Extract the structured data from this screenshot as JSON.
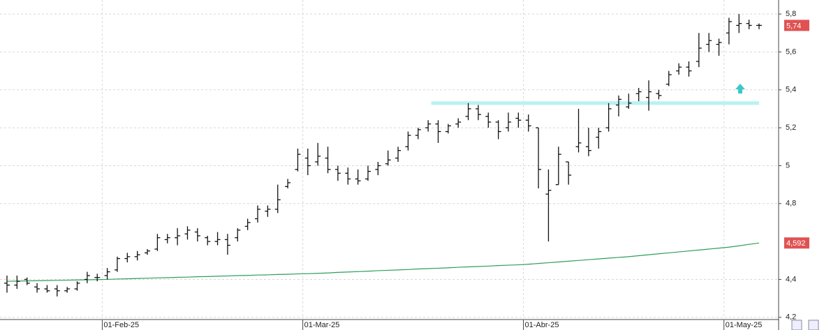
{
  "chart_data": {
    "type": "ohlc",
    "categories": [
      null,
      null,
      null,
      null,
      null,
      null,
      null,
      null,
      null,
      null,
      "01-Feb-25",
      null,
      null,
      null,
      null,
      null,
      null,
      null,
      null,
      null,
      null,
      null,
      null,
      null,
      null,
      null,
      null,
      null,
      null,
      null,
      "01-Mar-25",
      null,
      null,
      null,
      null,
      null,
      null,
      null,
      null,
      null,
      null,
      null,
      null,
      null,
      null,
      null,
      null,
      null,
      null,
      null,
      null,
      null,
      "01-Abr-25",
      null,
      null,
      null,
      null,
      null,
      null,
      null,
      null,
      null,
      null,
      null,
      null,
      null,
      null,
      null,
      null,
      null,
      null,
      null,
      "01-May-25",
      null,
      null,
      null
    ],
    "bars": [
      [
        4.38,
        4.42,
        4.33,
        4.37
      ],
      [
        4.37,
        4.42,
        4.35,
        4.39
      ],
      [
        4.4,
        4.41,
        4.37,
        4.38
      ],
      [
        4.36,
        4.38,
        4.33,
        4.35
      ],
      [
        4.35,
        4.37,
        4.33,
        4.34
      ],
      [
        4.35,
        4.37,
        4.31,
        4.34
      ],
      [
        4.34,
        4.36,
        4.33,
        4.35
      ],
      [
        4.35,
        4.39,
        4.34,
        4.38
      ],
      [
        4.4,
        4.44,
        4.38,
        4.42
      ],
      [
        4.41,
        4.43,
        4.39,
        4.41
      ],
      [
        4.42,
        4.46,
        4.4,
        4.44
      ],
      [
        4.45,
        4.52,
        4.44,
        4.51
      ],
      [
        4.51,
        4.54,
        4.49,
        4.52
      ],
      [
        4.52,
        4.55,
        4.5,
        4.53
      ],
      [
        4.54,
        4.56,
        4.53,
        4.55
      ],
      [
        4.56,
        4.64,
        4.55,
        4.62
      ],
      [
        4.61,
        4.64,
        4.59,
        4.62
      ],
      [
        4.62,
        4.67,
        4.58,
        4.63
      ],
      [
        4.64,
        4.68,
        4.61,
        4.66
      ],
      [
        4.65,
        4.67,
        4.6,
        4.63
      ],
      [
        4.62,
        4.63,
        4.58,
        4.6
      ],
      [
        4.6,
        4.65,
        4.58,
        4.61
      ],
      [
        4.61,
        4.64,
        4.53,
        4.58
      ],
      [
        4.62,
        4.67,
        4.6,
        4.66
      ],
      [
        4.68,
        4.72,
        4.66,
        4.7
      ],
      [
        4.72,
        4.79,
        4.7,
        4.77
      ],
      [
        4.76,
        4.79,
        4.73,
        4.77
      ],
      [
        4.77,
        4.9,
        4.75,
        4.82
      ],
      [
        4.89,
        4.93,
        4.88,
        4.91
      ],
      [
        4.98,
        5.09,
        4.97,
        5.06
      ],
      [
        5.04,
        5.09,
        4.95,
        5.0
      ],
      [
        5.02,
        5.12,
        5.0,
        5.05
      ],
      [
        5.04,
        5.1,
        4.96,
        4.98
      ],
      [
        4.98,
        5.0,
        4.92,
        4.96
      ],
      [
        4.96,
        4.99,
        4.9,
        4.93
      ],
      [
        4.93,
        4.98,
        4.9,
        4.92
      ],
      [
        4.93,
        5.0,
        4.92,
        4.97
      ],
      [
        4.98,
        5.02,
        4.95,
        5.0
      ],
      [
        5.01,
        5.08,
        5.0,
        5.03
      ],
      [
        5.04,
        5.1,
        5.02,
        5.08
      ],
      [
        5.1,
        5.18,
        5.08,
        5.16
      ],
      [
        5.16,
        5.2,
        5.14,
        5.19
      ],
      [
        5.2,
        5.24,
        5.18,
        5.22
      ],
      [
        5.22,
        5.24,
        5.12,
        5.18
      ],
      [
        5.18,
        5.22,
        5.17,
        5.21
      ],
      [
        5.22,
        5.25,
        5.2,
        5.23
      ],
      [
        5.26,
        5.33,
        5.24,
        5.3
      ],
      [
        5.3,
        5.32,
        5.24,
        5.27
      ],
      [
        5.26,
        5.28,
        5.2,
        5.23
      ],
      [
        5.23,
        5.24,
        5.14,
        5.18
      ],
      [
        5.2,
        5.28,
        5.18,
        5.23
      ],
      [
        5.25,
        5.28,
        5.2,
        5.24
      ],
      [
        5.24,
        5.27,
        5.18,
        5.21
      ],
      [
        5.2,
        5.2,
        4.88,
        4.98
      ],
      [
        4.85,
        4.98,
        4.6,
        4.87
      ],
      [
        4.9,
        5.1,
        4.9,
        5.06
      ],
      [
        5.02,
        5.02,
        4.9,
        4.95
      ],
      [
        5.1,
        5.3,
        5.07,
        5.12
      ],
      [
        5.1,
        5.2,
        5.05,
        5.08
      ],
      [
        5.15,
        5.2,
        5.09,
        5.18
      ],
      [
        5.2,
        5.33,
        5.18,
        5.3
      ],
      [
        5.32,
        5.37,
        5.26,
        5.35
      ],
      [
        5.31,
        5.38,
        5.3,
        5.33
      ],
      [
        5.38,
        5.41,
        5.34,
        5.39
      ],
      [
        5.36,
        5.45,
        5.29,
        5.39
      ],
      [
        5.38,
        5.4,
        5.35,
        5.37
      ],
      [
        5.43,
        5.5,
        5.42,
        5.48
      ],
      [
        5.5,
        5.54,
        5.48,
        5.52
      ],
      [
        5.52,
        5.55,
        5.47,
        5.5
      ],
      [
        5.55,
        5.7,
        5.52,
        5.62
      ],
      [
        5.64,
        5.7,
        5.6,
        5.66
      ],
      [
        5.64,
        5.67,
        5.58,
        5.65
      ],
      [
        5.7,
        5.78,
        5.64,
        5.76
      ],
      [
        5.74,
        5.8,
        5.7,
        5.75
      ],
      [
        5.75,
        5.77,
        5.72,
        5.74
      ],
      [
        5.74,
        5.75,
        5.72,
        5.74
      ]
    ],
    "bar_color": "#111111",
    "series": [
      {
        "name": "MA",
        "color": "#2e9e5a",
        "values": [
          4.39,
          4.391,
          4.392,
          4.393,
          4.394,
          4.395,
          4.396,
          4.397,
          4.398,
          4.399,
          4.4,
          4.402,
          4.403,
          4.405,
          4.406,
          4.408,
          4.409,
          4.411,
          4.412,
          4.414,
          4.415,
          4.417,
          4.418,
          4.42,
          4.421,
          4.423,
          4.424,
          4.426,
          4.427,
          4.429,
          4.43,
          4.432,
          4.434,
          4.437,
          4.439,
          4.441,
          4.443,
          4.446,
          4.448,
          4.45,
          4.452,
          4.455,
          4.457,
          4.459,
          4.461,
          4.464,
          4.466,
          4.468,
          4.47,
          4.473,
          4.475,
          4.477,
          4.48,
          4.484,
          4.488,
          4.492,
          4.496,
          4.5,
          4.504,
          4.508,
          4.512,
          4.516,
          4.52,
          4.525,
          4.53,
          4.535,
          4.54,
          4.545,
          4.55,
          4.555,
          4.56,
          4.565,
          4.57,
          4.577,
          4.585,
          4.592
        ]
      }
    ],
    "level_line": {
      "value": 5.33,
      "color": "#b8f2f2",
      "x": [
        43,
        75
      ]
    },
    "price_tags": [
      {
        "value": 5.74,
        "label": "5,74",
        "color": "#e05252"
      },
      {
        "value": 4.592,
        "label": "4,592",
        "color": "#e05252"
      }
    ],
    "ylim": [
      4.133,
      5.874
    ],
    "yticks": [
      {
        "value": 4.2,
        "label": "4,2"
      },
      {
        "value": 4.4,
        "label": "4,4"
      },
      {
        "value": 4.8,
        "label": "4,8"
      },
      5,
      {
        "value": 5.2,
        "label": "5,2"
      },
      {
        "value": 5.4,
        "label": "5,4"
      },
      {
        "value": 5.6,
        "label": "5,6"
      },
      {
        "value": 5.8,
        "label": "5,8"
      }
    ],
    "grid": true
  }
}
